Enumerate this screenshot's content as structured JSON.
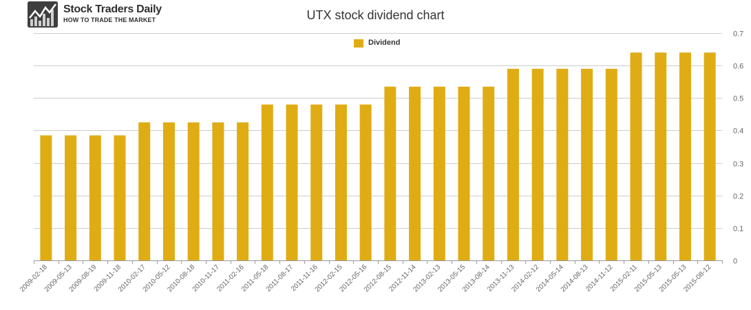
{
  "logo": {
    "title": "Stock Traders Daily",
    "subtitle": "HOW TO TRADE THE MARKET"
  },
  "colors": {
    "bar": "#e0ac14",
    "grid": "#cccccc",
    "axis": "#999999",
    "text": "#666666"
  },
  "chart_data": {
    "type": "bar",
    "title": "UTX stock dividend chart",
    "legend": {
      "label": "Dividend",
      "position": "top-center"
    },
    "xlabel": "",
    "ylabel": "",
    "ylim": [
      0,
      0.7
    ],
    "yticks": [
      0,
      0.1,
      0.2,
      0.3,
      0.4,
      0.5,
      0.6,
      0.7
    ],
    "ytick_labels": [
      "0",
      "0.1",
      "0.2",
      "0.3",
      "0.4",
      "0.5",
      "0.6",
      "0.7"
    ],
    "grid": true,
    "categories": [
      "2009-02-18",
      "2009-05-13",
      "2009-08-19",
      "2009-11-18",
      "2010-02-17",
      "2010-05-12",
      "2010-08-18",
      "2010-11-17",
      "2011-02-16",
      "2011-05-18",
      "2011-08-17",
      "2011-11-16",
      "2012-02-15",
      "2012-05-16",
      "2012-08-15",
      "2012-11-14",
      "2013-02-13",
      "2013-05-15",
      "2013-08-14",
      "2013-11-13",
      "2014-02-12",
      "2014-05-14",
      "2014-08-13",
      "2014-11-12",
      "2015-02-11",
      "2015-05-13",
      "2015-05-13",
      "2015-08-12"
    ],
    "series": [
      {
        "name": "Dividend",
        "values": [
          0.385,
          0.385,
          0.385,
          0.385,
          0.425,
          0.425,
          0.425,
          0.425,
          0.425,
          0.48,
          0.48,
          0.48,
          0.48,
          0.48,
          0.535,
          0.535,
          0.535,
          0.535,
          0.535,
          0.59,
          0.59,
          0.59,
          0.59,
          0.59,
          0.64,
          0.64,
          0.64,
          0.64
        ]
      }
    ]
  }
}
